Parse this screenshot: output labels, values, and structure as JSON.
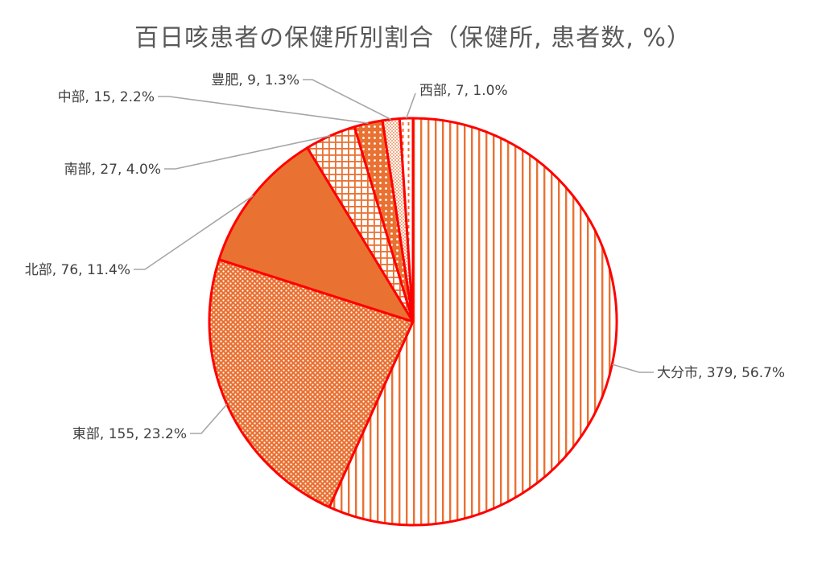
{
  "chart_data": {
    "type": "pie",
    "title": "百日咳患者の保健所別割合（保健所, 患者数, %）",
    "start_angle_deg": 0,
    "direction": "clockwise",
    "slices": [
      {
        "name": "大分市",
        "value": 379,
        "percent": 56.7,
        "label": "大分市, 379, 56.7%",
        "pattern": "vertical-lines"
      },
      {
        "name": "東部",
        "value": 155,
        "percent": 23.2,
        "label": "東部, 155, 23.2%",
        "pattern": "dots"
      },
      {
        "name": "北部",
        "value": 76,
        "percent": 11.4,
        "label": "北部, 76, 11.4%",
        "pattern": "solid"
      },
      {
        "name": "南部",
        "value": 27,
        "percent": 4.0,
        "label": "南部, 27, 4.0%",
        "pattern": "grid"
      },
      {
        "name": "中部",
        "value": 15,
        "percent": 2.2,
        "label": "中部, 15, 2.2%",
        "pattern": "large-dots"
      },
      {
        "name": "豊肥",
        "value": 9,
        "percent": 1.3,
        "label": "豊肥, 9, 1.3%",
        "pattern": "fine-dots"
      },
      {
        "name": "西部",
        "value": 7,
        "percent": 1.0,
        "label": "西部, 7, 1.0%",
        "pattern": "dashes"
      }
    ],
    "colors": {
      "fill": "#E97132",
      "border": "#FF0000",
      "background": "#FFFFFF",
      "leader": "#A6A6A6",
      "label_text": "#404040",
      "title_text": "#595959"
    },
    "legend": "none"
  }
}
